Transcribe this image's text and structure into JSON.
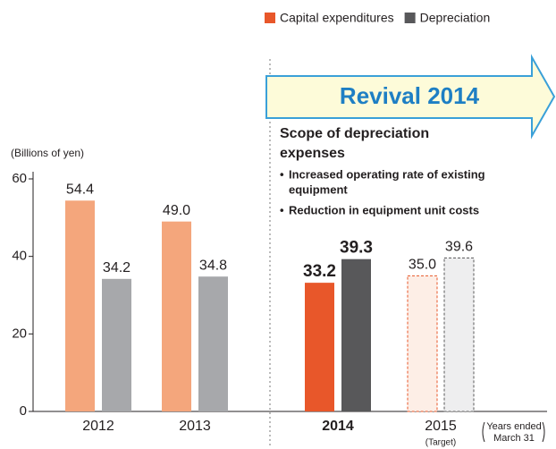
{
  "chart_data": {
    "type": "bar",
    "y_axis_label": "(Billions of yen)",
    "categories": [
      "2012",
      "2013",
      "2014",
      "2015"
    ],
    "category_note": [
      null,
      null,
      null,
      "(Target)"
    ],
    "highlight_index": 2,
    "dashed": [
      false,
      false,
      false,
      true
    ],
    "series": [
      {
        "name": "Capital expenditures",
        "color": "#e8572a",
        "colors": [
          "#f4a67c",
          "#f4a67c",
          "#e8572a",
          "#fdeee6"
        ],
        "values": [
          54.4,
          49.0,
          33.2,
          35.0
        ],
        "value_labels": [
          "54.4",
          "49.0",
          "33.2",
          "35.0"
        ]
      },
      {
        "name": "Depreciation",
        "color": "#58585a",
        "colors": [
          "#a7a8ab",
          "#a7a8ab",
          "#58585a",
          "#eeeeef"
        ],
        "values": [
          34.2,
          34.8,
          39.3,
          39.6
        ],
        "value_labels": [
          "34.2",
          "34.8",
          "39.3",
          "39.6"
        ]
      }
    ],
    "ylim": [
      0,
      60
    ],
    "yticks": [
      0,
      20,
      40,
      60
    ],
    "x_note": [
      "Years ended",
      "March 31"
    ],
    "banner": "Revival 2014",
    "scope_title": [
      "Scope of depreciation",
      "expenses"
    ],
    "bullets": [
      [
        "Increased operating rate of existing",
        "equipment"
      ],
      [
        "Reduction in equipment unit costs"
      ]
    ]
  }
}
